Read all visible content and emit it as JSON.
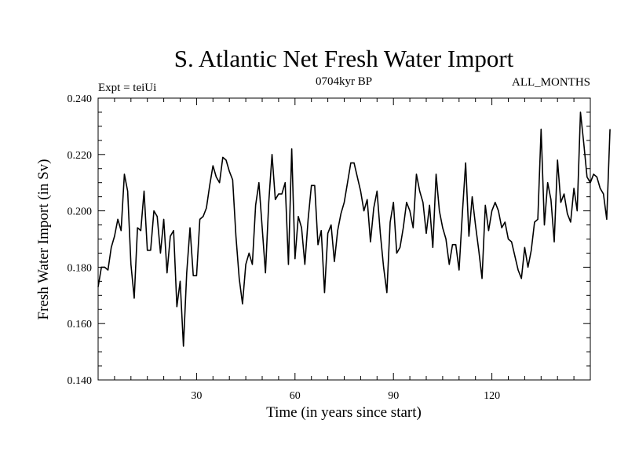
{
  "chart_data": {
    "type": "line",
    "title": "S. Atlantic Net Fresh Water Import",
    "subtitle_left": "Expt = teiUi",
    "subtitle_center": "0704kyr BP",
    "subtitle_right": "ALL_MONTHS",
    "xlabel": "Time (in years since start)",
    "ylabel": "Fresh Water Import (in Sv)",
    "xlim": [
      0,
      150
    ],
    "ylim": [
      0.14,
      0.24
    ],
    "xticks": [
      30,
      60,
      90,
      120
    ],
    "xtick_labels": [
      "30",
      "60",
      "90",
      "120"
    ],
    "yticks": [
      0.14,
      0.16,
      0.18,
      0.2,
      0.22,
      0.24
    ],
    "ytick_labels": [
      "0.140",
      "0.160",
      "0.180",
      "0.200",
      "0.220",
      "0.240"
    ],
    "line_color": "#000000",
    "series": [
      {
        "name": "fresh water import",
        "x_start": 0,
        "x_step": 1,
        "values": [
          0.173,
          0.18,
          0.18,
          0.179,
          0.187,
          0.191,
          0.197,
          0.193,
          0.213,
          0.207,
          0.181,
          0.169,
          0.194,
          0.193,
          0.207,
          0.186,
          0.186,
          0.2,
          0.198,
          0.185,
          0.197,
          0.178,
          0.191,
          0.193,
          0.166,
          0.175,
          0.152,
          0.178,
          0.194,
          0.177,
          0.177,
          0.197,
          0.198,
          0.201,
          0.209,
          0.216,
          0.212,
          0.21,
          0.219,
          0.218,
          0.214,
          0.211,
          0.191,
          0.176,
          0.167,
          0.181,
          0.185,
          0.181,
          0.202,
          0.21,
          0.194,
          0.178,
          0.203,
          0.22,
          0.204,
          0.206,
          0.206,
          0.21,
          0.181,
          0.222,
          0.183,
          0.198,
          0.194,
          0.181,
          0.197,
          0.209,
          0.209,
          0.188,
          0.193,
          0.171,
          0.192,
          0.195,
          0.182,
          0.193,
          0.199,
          0.203,
          0.21,
          0.217,
          0.217,
          0.212,
          0.207,
          0.2,
          0.204,
          0.189,
          0.201,
          0.207,
          0.192,
          0.18,
          0.171,
          0.196,
          0.203,
          0.185,
          0.187,
          0.194,
          0.203,
          0.2,
          0.194,
          0.213,
          0.207,
          0.203,
          0.192,
          0.202,
          0.187,
          0.213,
          0.2,
          0.194,
          0.19,
          0.181,
          0.188,
          0.188,
          0.179,
          0.199,
          0.217,
          0.191,
          0.205,
          0.195,
          0.186,
          0.176,
          0.202,
          0.193,
          0.2,
          0.203,
          0.2,
          0.194,
          0.196,
          0.19,
          0.189,
          0.184,
          0.179,
          0.176,
          0.187,
          0.18,
          0.186,
          0.196,
          0.197,
          0.229,
          0.195,
          0.21,
          0.204,
          0.189,
          0.218,
          0.203,
          0.206,
          0.199,
          0.196,
          0.208,
          0.2,
          0.235,
          0.224,
          0.212,
          0.21,
          0.213,
          0.212,
          0.208,
          0.206,
          0.197,
          0.229
        ]
      }
    ]
  }
}
